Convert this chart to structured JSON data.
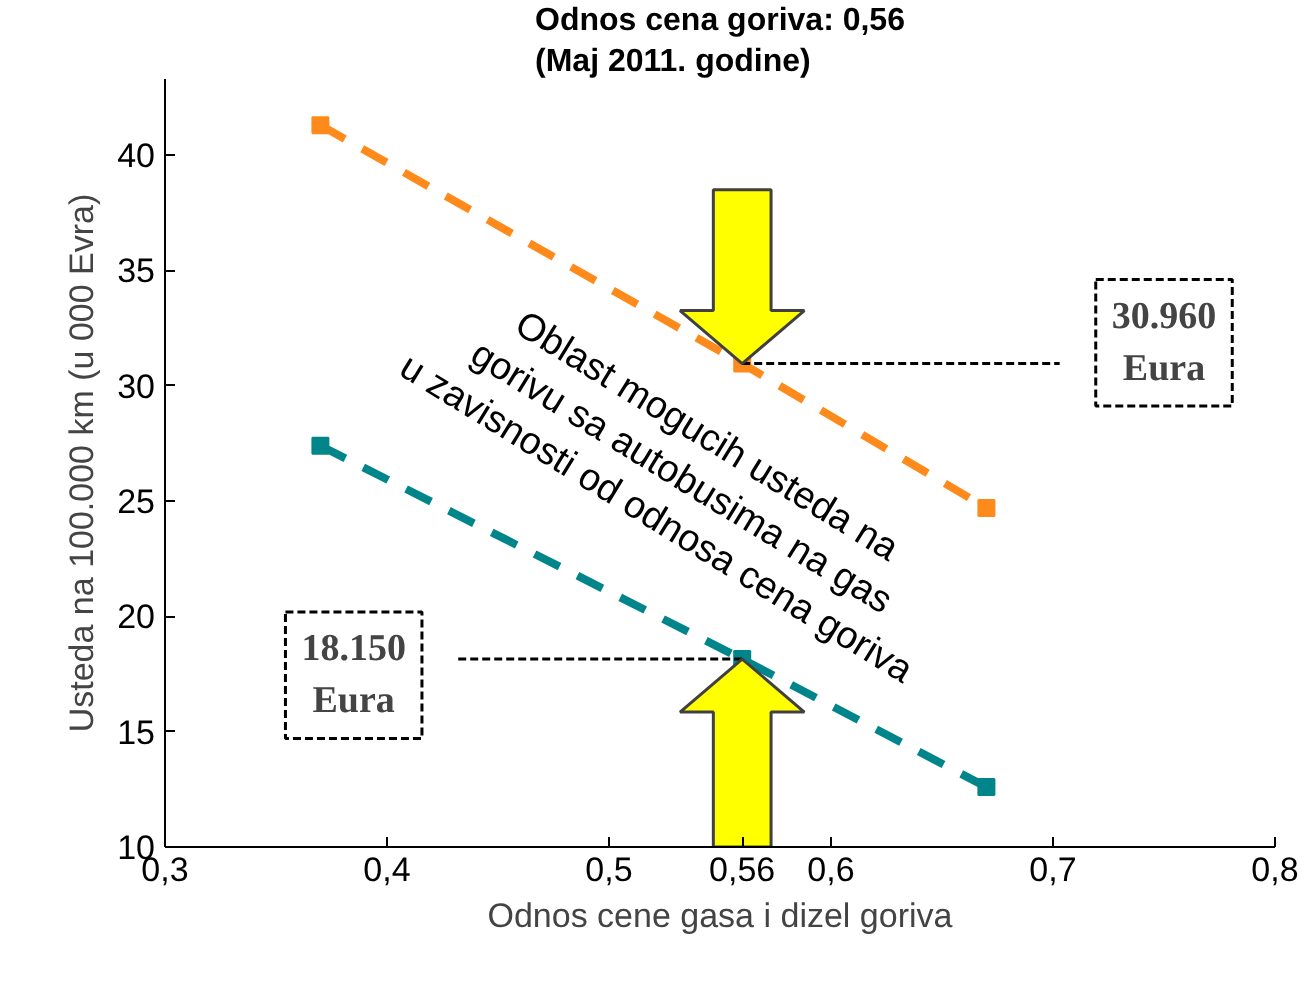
{
  "chart_data": {
    "type": "line",
    "title": "Odnos cena goriva: 0,56\n(Maj 2011. godine)",
    "xlabel": "Odnos cene gasa i dizel goriva",
    "ylabel": "Usteda na 100.000 km (u 000 Evra)",
    "series": [
      {
        "color": "#ff8a1c",
        "x": [
          0.37,
          0.56,
          0.67
        ],
        "values": [
          41.3,
          30.96,
          24.7
        ]
      },
      {
        "color": "#00868a",
        "x": [
          0.37,
          0.56,
          0.67
        ],
        "values": [
          27.4,
          18.15,
          12.6
        ]
      }
    ],
    "xlim": [
      0.3,
      0.8
    ],
    "xticks": [
      {
        "value": 0.3,
        "label": "0,3"
      },
      {
        "value": 0.4,
        "label": "0,4"
      },
      {
        "value": 0.5,
        "label": "0,5"
      },
      {
        "value": 0.56,
        "label": "0,56"
      },
      {
        "value": 0.6,
        "label": "0,6"
      },
      {
        "value": 0.7,
        "label": "0,7"
      },
      {
        "value": 0.8,
        "label": "0,8"
      }
    ],
    "ylim": [
      10,
      43.3
    ],
    "yticks": [
      10,
      15,
      20,
      25,
      30,
      35,
      40
    ],
    "marker": "square",
    "line_style": "dashed",
    "grid": false,
    "annotations": [
      "Oblast mogucih usteda na\ngorivu sa autobusima na gas\nu zavisnosti od odnosa cena goriva",
      "30.960\nEura",
      "18.150\nEura"
    ]
  }
}
